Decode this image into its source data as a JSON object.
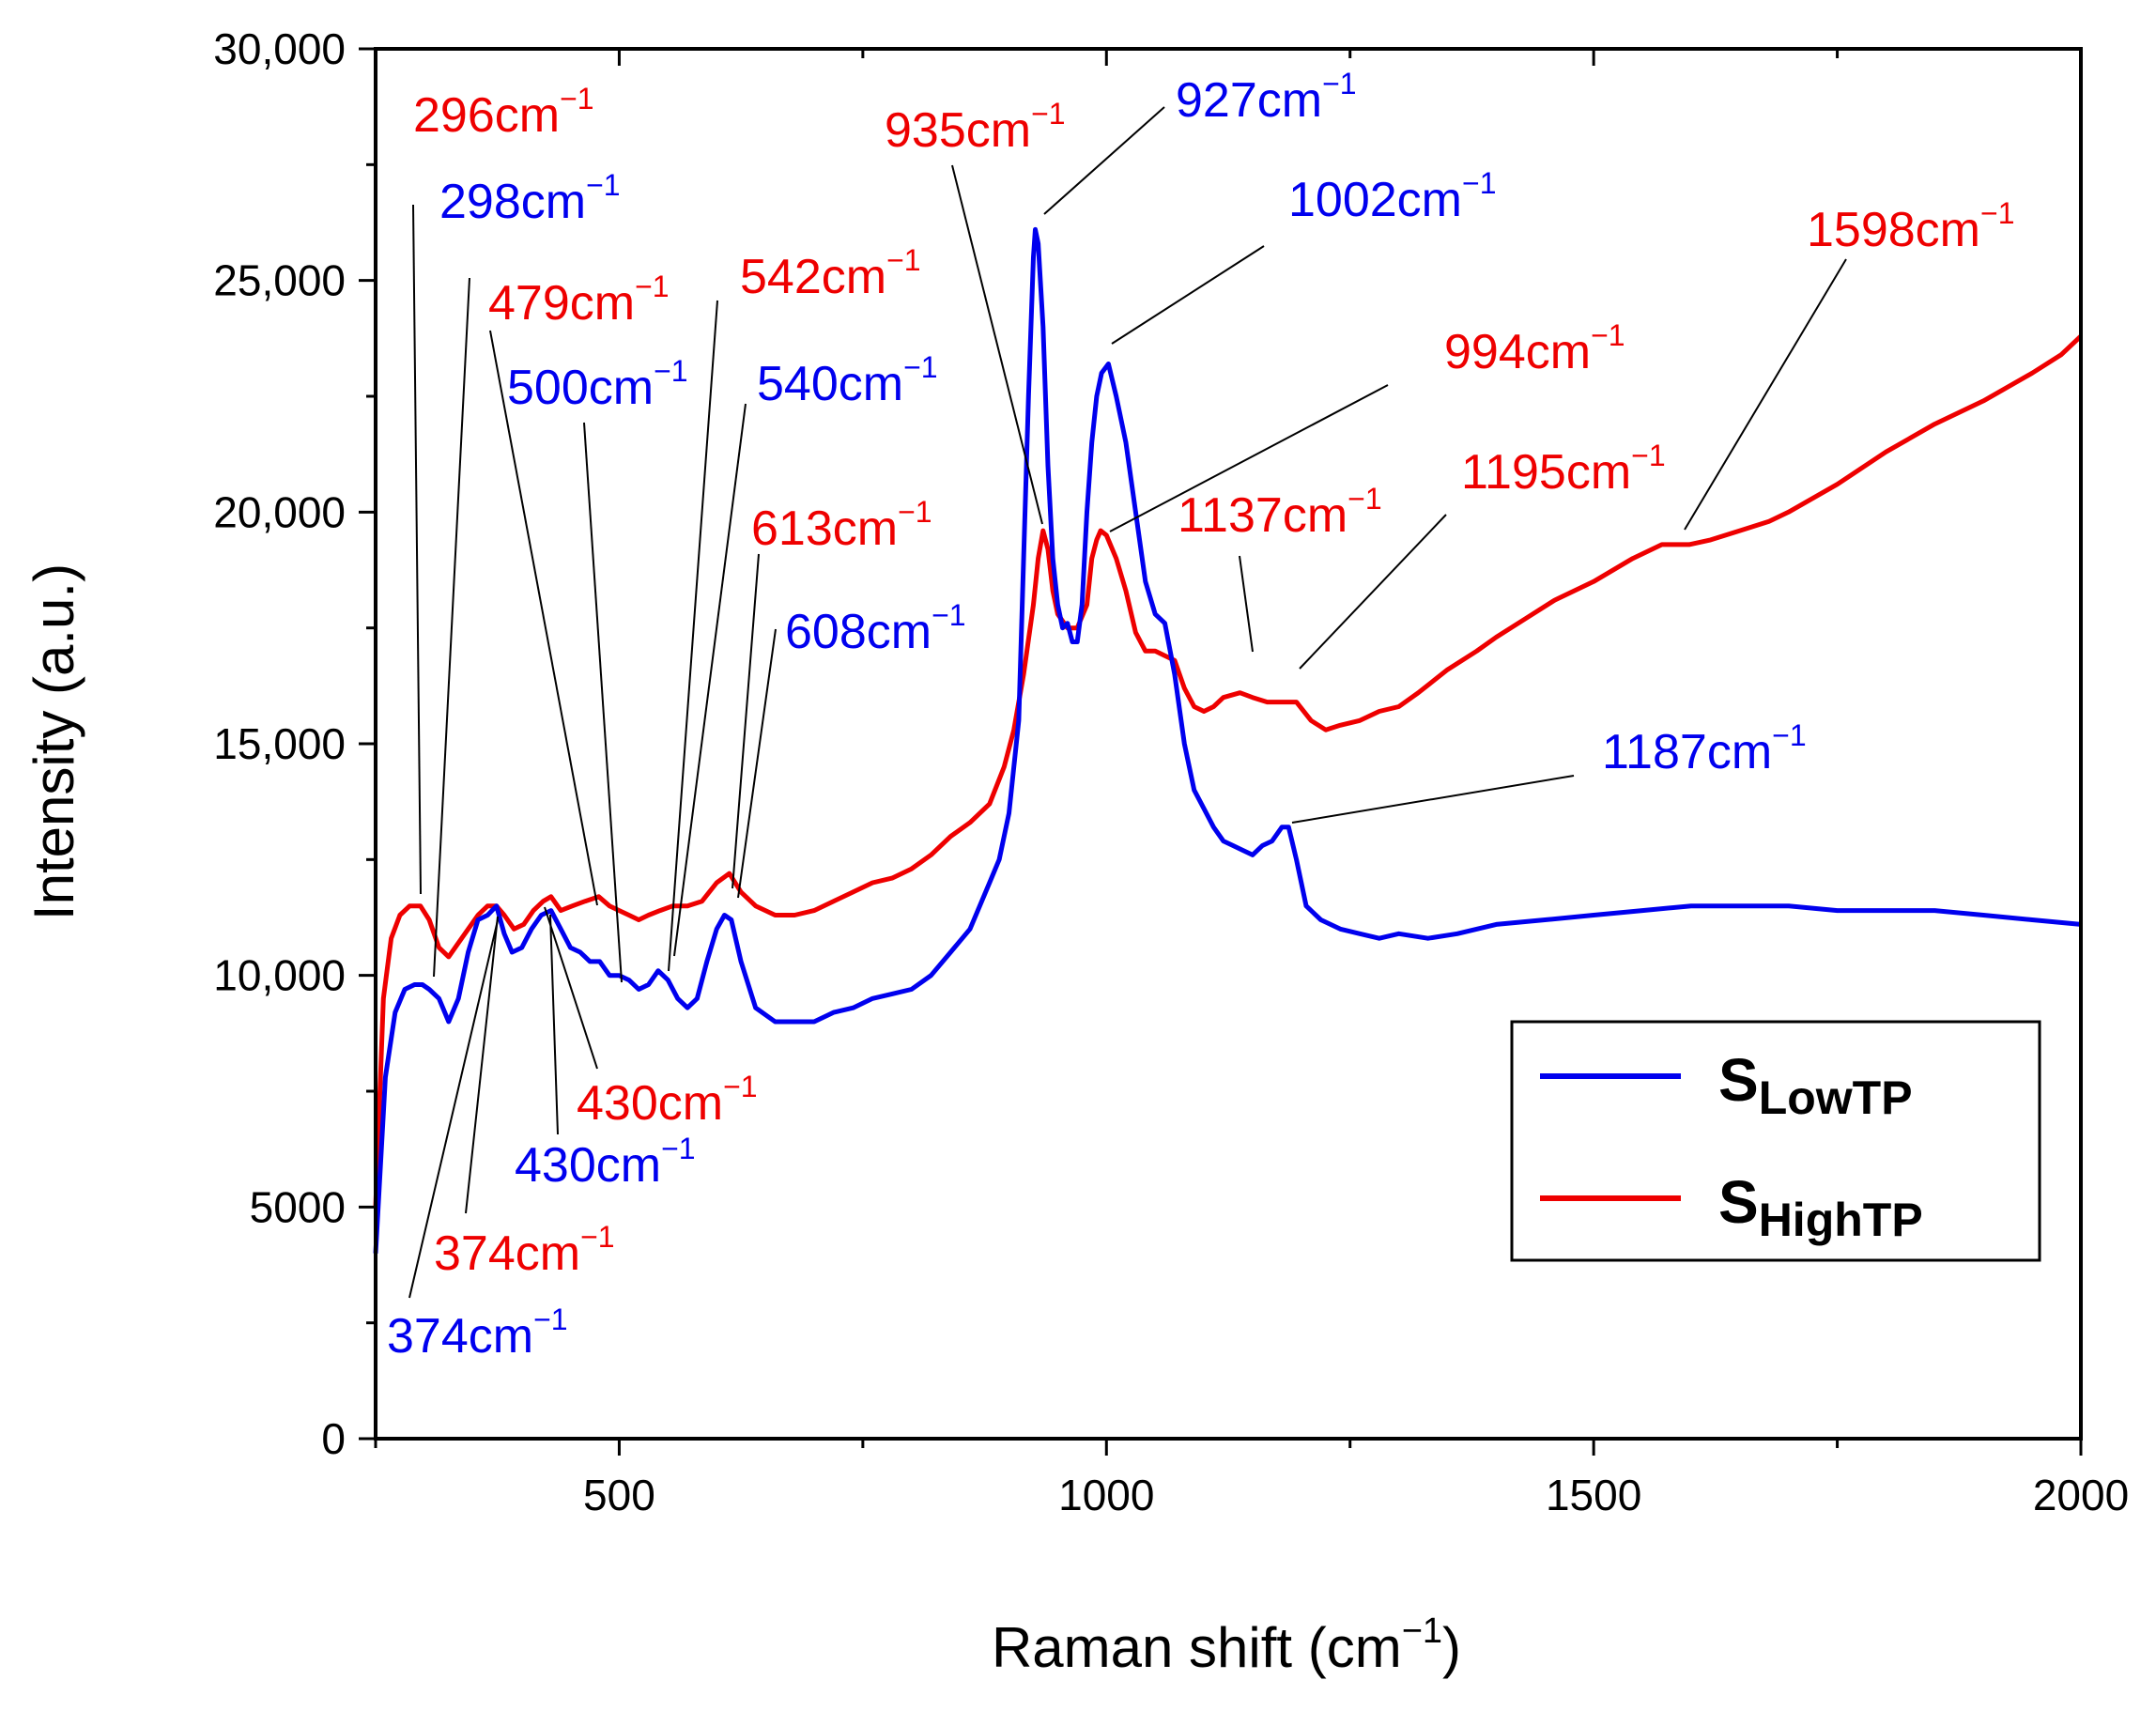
{
  "chart_data": {
    "type": "line",
    "xlabel": "Raman shift (cm",
    "xlabel_sup": "−1",
    "xlabel_end": ")",
    "ylabel": "Intensity (a.u.)",
    "xlim": [
      250,
      2000
    ],
    "ylim": [
      0,
      30000
    ],
    "x_ticks": [
      {
        "value": 500,
        "label": "500"
      },
      {
        "value": 1000,
        "label": "1000"
      },
      {
        "value": 1500,
        "label": "1500"
      },
      {
        "value": 2000,
        "label": "2000"
      }
    ],
    "x_minor_ticks": [
      750,
      1250,
      1750
    ],
    "y_ticks": [
      {
        "value": 0,
        "label": "0"
      },
      {
        "value": 5000,
        "label": "5000"
      },
      {
        "value": 10000,
        "label": "10,000"
      },
      {
        "value": 15000,
        "label": "15,000"
      },
      {
        "value": 20000,
        "label": "20,000"
      },
      {
        "value": 25000,
        "label": "25,000"
      },
      {
        "value": 30000,
        "label": "30,000"
      }
    ],
    "y_minor_ticks": [
      2500,
      7500,
      12500,
      17500,
      22500,
      27500
    ],
    "series": [
      {
        "name": "S_LowTP",
        "label_main": "S",
        "label_sub": "LowTP",
        "color": "#0000ee",
        "x": [
          250,
          260,
          270,
          280,
          290,
          298,
          305,
          315,
          325,
          335,
          345,
          355,
          365,
          374,
          382,
          390,
          400,
          410,
          420,
          430,
          440,
          450,
          460,
          470,
          480,
          490,
          500,
          510,
          520,
          530,
          540,
          550,
          560,
          570,
          580,
          590,
          600,
          608,
          615,
          625,
          640,
          660,
          680,
          700,
          720,
          740,
          760,
          780,
          800,
          820,
          840,
          860,
          880,
          890,
          900,
          910,
          915,
          920,
          925,
          927,
          930,
          935,
          940,
          945,
          950,
          955,
          960,
          965,
          970,
          975,
          980,
          985,
          990,
          995,
          1002,
          1010,
          1020,
          1030,
          1040,
          1050,
          1060,
          1070,
          1080,
          1090,
          1100,
          1110,
          1120,
          1130,
          1140,
          1150,
          1160,
          1170,
          1180,
          1187,
          1195,
          1205,
          1220,
          1240,
          1260,
          1280,
          1300,
          1330,
          1360,
          1400,
          1450,
          1500,
          1550,
          1600,
          1650,
          1700,
          1750,
          1800,
          1850,
          1900,
          1950,
          2000
        ],
        "y": [
          4000,
          7800,
          9200,
          9700,
          9800,
          9800,
          9700,
          9500,
          9000,
          9500,
          10500,
          11200,
          11300,
          11500,
          10900,
          10500,
          10600,
          11000,
          11300,
          11400,
          11000,
          10600,
          10500,
          10300,
          10300,
          10000,
          10000,
          9900,
          9700,
          9800,
          10100,
          9900,
          9500,
          9300,
          9500,
          10300,
          11000,
          11300,
          11200,
          10300,
          9300,
          9000,
          9000,
          9000,
          9200,
          9300,
          9500,
          9600,
          9700,
          10000,
          10500,
          11000,
          12000,
          12500,
          13500,
          15500,
          19000,
          22500,
          25500,
          26100,
          25800,
          24000,
          21000,
          19000,
          18000,
          17500,
          17600,
          17200,
          17200,
          18000,
          20000,
          21500,
          22500,
          23000,
          23200,
          22500,
          21500,
          20000,
          18500,
          17800,
          17600,
          16500,
          15000,
          14000,
          13600,
          13200,
          12900,
          12800,
          12700,
          12600,
          12800,
          12900,
          13200,
          13200,
          12500,
          11500,
          11200,
          11000,
          10900,
          10800,
          10900,
          10800,
          10900,
          11100,
          11200,
          11300,
          11400,
          11500,
          11500,
          11500,
          11400,
          11400,
          11400,
          11300,
          11200,
          11100
        ]
      },
      {
        "name": "S_HighTP",
        "label_main": "S",
        "label_sub": "HighTP",
        "color": "#ee0000",
        "x": [
          250,
          258,
          266,
          275,
          285,
          296,
          305,
          315,
          325,
          335,
          345,
          355,
          365,
          374,
          382,
          392,
          402,
          412,
          422,
          430,
          440,
          452,
          465,
          479,
          490,
          500,
          510,
          520,
          530,
          542,
          555,
          570,
          585,
          600,
          613,
          625,
          640,
          660,
          680,
          700,
          720,
          740,
          760,
          780,
          800,
          820,
          840,
          860,
          880,
          895,
          905,
          915,
          925,
          930,
          935,
          940,
          945,
          950,
          960,
          970,
          980,
          985,
          990,
          994,
          1000,
          1010,
          1020,
          1030,
          1040,
          1050,
          1060,
          1070,
          1080,
          1090,
          1100,
          1110,
          1120,
          1137,
          1150,
          1165,
          1180,
          1195,
          1210,
          1225,
          1240,
          1260,
          1280,
          1300,
          1320,
          1350,
          1380,
          1400,
          1430,
          1460,
          1500,
          1540,
          1570,
          1598,
          1620,
          1650,
          1680,
          1700,
          1750,
          1800,
          1850,
          1900,
          1950,
          1980,
          2000
        ],
        "y": [
          5000,
          9500,
          10800,
          11300,
          11500,
          11500,
          11200,
          10600,
          10400,
          10700,
          11000,
          11300,
          11500,
          11500,
          11300,
          11000,
          11100,
          11400,
          11600,
          11700,
          11400,
          11500,
          11600,
          11700,
          11500,
          11400,
          11300,
          11200,
          11300,
          11400,
          11500,
          11500,
          11600,
          12000,
          12200,
          11800,
          11500,
          11300,
          11300,
          11400,
          11600,
          11800,
          12000,
          12100,
          12300,
          12600,
          13000,
          13300,
          13700,
          14500,
          15300,
          16500,
          18000,
          19000,
          19600,
          19200,
          18300,
          17800,
          17500,
          17500,
          18000,
          19000,
          19400,
          19600,
          19500,
          19000,
          18300,
          17400,
          17000,
          17000,
          16900,
          16800,
          16200,
          15800,
          15700,
          15800,
          16000,
          16100,
          16000,
          15900,
          15900,
          15900,
          15500,
          15300,
          15400,
          15500,
          15700,
          15800,
          16100,
          16600,
          17000,
          17300,
          17700,
          18100,
          18500,
          19000,
          19300,
          19300,
          19400,
          19600,
          19800,
          20000,
          20600,
          21300,
          21900,
          22400,
          23000,
          23400,
          23800
        ]
      }
    ],
    "annotations": [
      {
        "text": "296cm",
        "sup": "−1",
        "color": "#ee0000"
      },
      {
        "text": "298cm",
        "sup": "−1",
        "color": "#0000ee"
      },
      {
        "text": "479cm",
        "sup": "−1",
        "color": "#ee0000"
      },
      {
        "text": "542cm",
        "sup": "−1",
        "color": "#ee0000"
      },
      {
        "text": "500cm",
        "sup": "−1",
        "color": "#0000ee"
      },
      {
        "text": "540cm",
        "sup": "−1",
        "color": "#0000ee"
      },
      {
        "text": "613cm",
        "sup": "−1",
        "color": "#ee0000"
      },
      {
        "text": "608cm",
        "sup": "−1",
        "color": "#0000ee"
      },
      {
        "text": "935cm",
        "sup": "−1",
        "color": "#ee0000"
      },
      {
        "text": "927cm",
        "sup": "−1",
        "color": "#0000ee"
      },
      {
        "text": "1002cm",
        "sup": "−1",
        "color": "#0000ee"
      },
      {
        "text": "994cm",
        "sup": "−1",
        "color": "#ee0000"
      },
      {
        "text": "1137cm",
        "sup": "−1",
        "color": "#ee0000"
      },
      {
        "text": "1195cm",
        "sup": "−1",
        "color": "#ee0000"
      },
      {
        "text": "1598cm",
        "sup": "−1",
        "color": "#ee0000"
      },
      {
        "text": "1187cm",
        "sup": "−1",
        "color": "#0000ee"
      },
      {
        "text": "430cm",
        "sup": "−1",
        "color": "#ee0000"
      },
      {
        "text": "430cm",
        "sup": "−1",
        "color": "#0000ee"
      },
      {
        "text": "374cm",
        "sup": "−1",
        "color": "#ee0000"
      },
      {
        "text": "374cm",
        "sup": "−1",
        "color": "#0000ee"
      }
    ],
    "legend": {
      "position": "bottom-right"
    }
  }
}
